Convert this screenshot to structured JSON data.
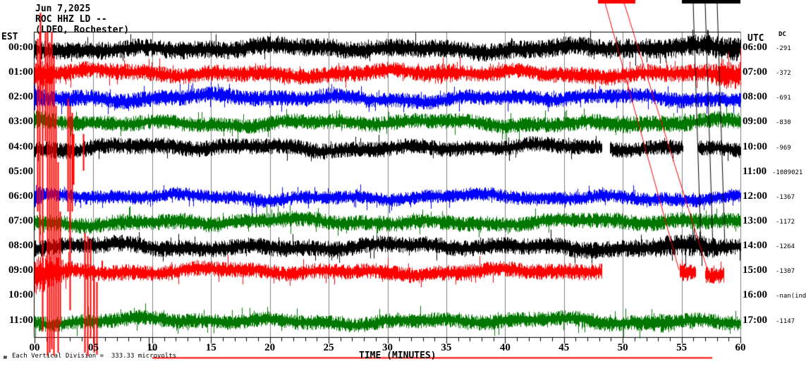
{
  "header": {
    "date": "Jun 7,2025",
    "station": "ROC HHZ LD --",
    "location": "(LDEO, Rochester)"
  },
  "axes": {
    "left_label": "EST",
    "right_label": "UTC",
    "right_sub_label": "DC",
    "x_label": "TIME (MINUTES)",
    "x_ticks": [
      "00",
      "05",
      "10",
      "15",
      "20",
      "25",
      "30",
      "35",
      "40",
      "45",
      "50",
      "55",
      "60"
    ],
    "x_range": [
      0,
      60
    ]
  },
  "footer": {
    "scale_text": "Each Vertical Division =  333.33 microvolts",
    "tiny_glyph": "м"
  },
  "chart_data": {
    "type": "line",
    "subtype": "helicorder-seismogram",
    "title": "ROC HHZ LD -- (LDEO, Rochester) Jun 7,2025",
    "xlabel": "TIME (MINUTES)",
    "x_axis": {
      "min": 0,
      "max": 60,
      "major_tick": 5,
      "minor_tick": 1
    },
    "colors": {
      "black": "#000000",
      "red": "#ff0000",
      "blue": "#0000ff",
      "green": "#007700",
      "grid": "#808080"
    },
    "rows": [
      {
        "est": "00:00",
        "utc": "06:00",
        "dc": "-291",
        "color": "black",
        "present": true,
        "seed": 101,
        "spike_p": 0.05,
        "envelope": [
          [
            0,
            16
          ],
          [
            1,
            13
          ],
          [
            40,
            13
          ],
          [
            50,
            14
          ],
          [
            56,
            15
          ],
          [
            59,
            17
          ],
          [
            60,
            17
          ]
        ],
        "gaps": []
      },
      {
        "est": "01:00",
        "utc": "07:00",
        "dc": "-372",
        "color": "red",
        "present": true,
        "seed": 202,
        "spike_p": 0.05,
        "envelope": [
          [
            0,
            24
          ],
          [
            1.5,
            14
          ],
          [
            3,
            12
          ],
          [
            33,
            12
          ],
          [
            34.5,
            16
          ],
          [
            36,
            12
          ],
          [
            50,
            12
          ],
          [
            57,
            13
          ],
          [
            58.5,
            19
          ],
          [
            60,
            21
          ]
        ],
        "gaps": []
      },
      {
        "est": "02:00",
        "utc": "08:00",
        "dc": "-691",
        "color": "blue",
        "present": true,
        "seed": 303,
        "spike_p": 0.07,
        "envelope": [
          [
            0,
            20
          ],
          [
            1,
            12
          ],
          [
            30,
            11
          ],
          [
            60,
            11
          ]
        ],
        "gaps": []
      },
      {
        "est": "03:00",
        "utc": "09:00",
        "dc": "-830",
        "color": "green",
        "present": true,
        "seed": 404,
        "spike_p": 0.05,
        "envelope": [
          [
            0,
            14
          ],
          [
            2,
            11
          ],
          [
            47,
            11
          ],
          [
            50,
            13
          ],
          [
            55,
            12
          ],
          [
            60,
            12
          ]
        ],
        "gaps": []
      },
      {
        "est": "04:00",
        "utc": "10:00",
        "dc": "-969",
        "color": "black",
        "present": true,
        "seed": 505,
        "spike_p": 0.04,
        "envelope": [
          [
            0,
            12
          ],
          [
            50,
            11
          ],
          [
            60,
            11
          ]
        ],
        "gaps": [
          [
            48.2,
            48.9
          ],
          [
            55.1,
            56.4
          ]
        ]
      },
      {
        "est": "05:00",
        "utc": "11:00",
        "dc": "-1089021",
        "color": "red",
        "present": false,
        "seed": 606,
        "spike_p": 0,
        "envelope": [
          [
            0,
            0
          ],
          [
            60,
            0
          ]
        ],
        "gaps": []
      },
      {
        "est": "06:00",
        "utc": "12:00",
        "dc": "-1367",
        "color": "blue",
        "present": true,
        "seed": 707,
        "spike_p": 0.07,
        "envelope": [
          [
            0,
            17
          ],
          [
            1,
            10
          ],
          [
            60,
            10
          ]
        ],
        "gaps": []
      },
      {
        "est": "07:00",
        "utc": "13:00",
        "dc": "-1172",
        "color": "green",
        "present": true,
        "seed": 808,
        "spike_p": 0.05,
        "envelope": [
          [
            0,
            12
          ],
          [
            45,
            11
          ],
          [
            52,
            12
          ],
          [
            60,
            11
          ]
        ],
        "gaps": []
      },
      {
        "est": "08:00",
        "utc": "14:00",
        "dc": "-1264",
        "color": "black",
        "present": true,
        "seed": 909,
        "spike_p": 0.05,
        "envelope": [
          [
            0,
            12
          ],
          [
            40,
            12
          ],
          [
            52,
            13
          ],
          [
            55,
            17
          ],
          [
            58,
            14
          ],
          [
            60,
            12
          ]
        ],
        "gaps": []
      },
      {
        "est": "09:00",
        "utc": "15:00",
        "dc": "-1307",
        "color": "red",
        "present": true,
        "seed": 1010,
        "spike_p": 0.05,
        "envelope": [
          [
            0,
            30
          ],
          [
            1,
            26
          ],
          [
            2.5,
            16
          ],
          [
            3.5,
            12
          ],
          [
            20,
            11
          ],
          [
            44,
            12
          ],
          [
            48.2,
            12
          ],
          [
            54.8,
            14
          ],
          [
            56.2,
            12
          ],
          [
            57,
            12
          ],
          [
            58.6,
            11
          ],
          [
            60,
            11
          ]
        ],
        "gaps": [
          [
            48.2,
            54.8
          ],
          [
            56.2,
            57.0
          ],
          [
            58.6,
            60
          ]
        ]
      },
      {
        "est": "10:00",
        "utc": "16:00",
        "dc": "-nan(ind",
        "color": "blue",
        "present": false,
        "seed": 1111,
        "spike_p": 0,
        "envelope": [
          [
            0,
            0
          ],
          [
            60,
            0
          ]
        ],
        "gaps": []
      },
      {
        "est": "11:00",
        "utc": "17:00",
        "dc": "-1147",
        "color": "green",
        "present": true,
        "seed": 1212,
        "spike_p": 0.07,
        "envelope": [
          [
            0,
            11
          ],
          [
            30,
            11
          ],
          [
            52.5,
            12
          ],
          [
            53.5,
            15
          ],
          [
            55,
            11
          ],
          [
            60,
            11
          ]
        ],
        "gaps": []
      }
    ],
    "overlays": {
      "red_top_bar": {
        "x": 848,
        "y": 0,
        "w": 53,
        "h": 5
      },
      "black_top_bar": {
        "x": 967,
        "y": 0,
        "w": 83,
        "h": 5
      },
      "red_diagonal_lines": [
        [
          858,
          4,
          963,
          383
        ],
        [
          885,
          4,
          1005,
          388
        ]
      ],
      "black_overflow_lines": [
        [
          983,
          4,
          994,
          350
        ],
        [
          1000,
          4,
          1011,
          352
        ],
        [
          1017,
          4,
          1028,
          350
        ]
      ],
      "red_event_lines": [
        [
          57,
          18,
          140
        ],
        [
          53,
          55,
          300
        ],
        [
          56,
          45,
          345
        ],
        [
          60,
          95,
          470
        ],
        [
          64,
          45,
          200
        ],
        [
          67,
          45,
          505
        ],
        [
          70,
          60,
          500
        ],
        [
          73,
          45,
          495
        ],
        [
          76,
          80,
          505
        ],
        [
          79,
          150,
          470
        ],
        [
          82,
          230,
          500
        ],
        [
          85,
          300,
          460
        ],
        [
          96,
          140,
          300
        ],
        [
          99,
          150,
          440
        ],
        [
          102,
          160,
          300
        ],
        [
          104,
          190,
          262
        ],
        [
          118,
          190,
          242
        ],
        [
          120,
          330,
          500
        ],
        [
          124,
          335,
          505
        ],
        [
          128,
          340,
          480
        ],
        [
          133,
          380,
          500
        ],
        [
          137,
          400,
          503
        ]
      ],
      "bottom_red_underline": [
        216,
        507,
        1010,
        507
      ],
      "black_bottom_marks": [
        [
          211,
          478,
          211,
          496
        ],
        [
          211,
          496,
          221,
          496
        ]
      ]
    }
  }
}
